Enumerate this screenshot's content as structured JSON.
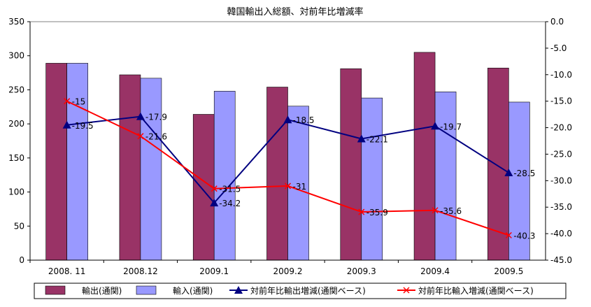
{
  "chart_data": {
    "type": "bar",
    "title": "韓国輸出入総額、対前年比増減率",
    "categories": [
      "2008. 11",
      "2008.12",
      "2009.1",
      "2009.2",
      "2009.3",
      "2009.4",
      "2009.5"
    ],
    "series": [
      {
        "name": "輸出(通関)",
        "type": "bar",
        "axis": "left",
        "color": "#993366",
        "values": [
          289,
          272,
          214,
          254,
          281,
          305,
          282
        ]
      },
      {
        "name": "輸入(通関)",
        "type": "bar",
        "axis": "left",
        "color": "#9999FF",
        "values": [
          289,
          267,
          248,
          226,
          238,
          247,
          232
        ]
      },
      {
        "name": "対前年比輸出増減(通関ベース)",
        "type": "line",
        "axis": "right",
        "color": "#000080",
        "marker": "triangle",
        "values": [
          -19.5,
          -17.9,
          -34.2,
          -18.5,
          -22.1,
          -19.7,
          -28.5
        ],
        "labels": [
          "-19.5",
          "-17.9",
          "-34.2",
          "-18.5",
          "-22.1",
          "-19.7",
          "-28.5"
        ]
      },
      {
        "name": "対前年比輸入増減(通関ベース)",
        "type": "line",
        "axis": "right",
        "color": "#FF0000",
        "marker": "x",
        "values": [
          -15,
          -21.6,
          -31.5,
          -31,
          -35.9,
          -35.6,
          -40.3
        ],
        "labels": [
          "-15",
          "-21.6",
          "-31.5",
          "-31",
          "-35.9",
          "-35.6",
          "-40.3"
        ]
      }
    ],
    "y_left": {
      "min": 0,
      "max": 350,
      "step": 50,
      "tick_labels": [
        "0",
        "50",
        "100",
        "150",
        "200",
        "250",
        "300",
        "350"
      ]
    },
    "y_right": {
      "min": -45,
      "max": 0,
      "step": 5,
      "tick_labels": [
        "-45.0",
        "-40.0",
        "-35.0",
        "-30.0",
        "-25.0",
        "-20.0",
        "-15.0",
        "-10.0",
        "-5.0",
        "0.0"
      ]
    },
    "grid": false,
    "legend_position": "bottom"
  }
}
